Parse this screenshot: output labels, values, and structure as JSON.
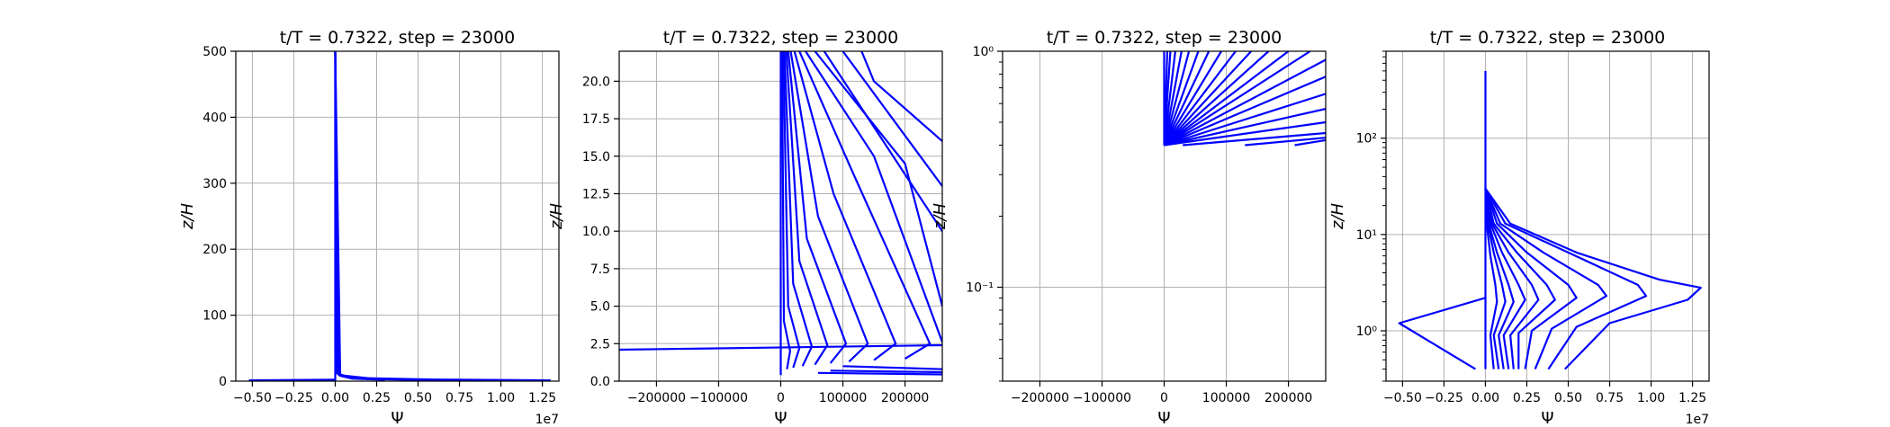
{
  "chart_data": [
    {
      "type": "line",
      "title": "t/T = 0.7322, step = 23000",
      "xlabel": "Ψ",
      "ylabel": "z/H",
      "x_scale_label": "1e7",
      "x_scale": "linear",
      "y_scale": "linear",
      "xlim": [
        -0.6,
        1.35
      ],
      "ylim": [
        0,
        500
      ],
      "x_ticks": [
        -0.5,
        -0.25,
        0.0,
        0.25,
        0.5,
        0.75,
        1.0,
        1.25
      ],
      "x_tick_labels": [
        "−0.50",
        "−0.25",
        "0.00",
        "0.25",
        "0.50",
        "0.75",
        "1.00",
        "1.25"
      ],
      "y_ticks": [
        0,
        100,
        200,
        300,
        400,
        500
      ],
      "y_tick_labels": [
        "0",
        "100",
        "200",
        "300",
        "400",
        "500"
      ],
      "grid": true,
      "color": "#0000ff",
      "series": [
        {
          "x": [
            0,
            0
          ],
          "y": [
            0.4,
            500
          ]
        },
        {
          "x": [
            0.02,
            0.005,
            0.001,
            0
          ],
          "y": [
            12,
            18,
            30,
            500
          ]
        },
        {
          "x": [
            0.3,
            0.1,
            0.03,
            0.005,
            0
          ],
          "y": [
            2,
            4,
            8,
            14,
            500
          ]
        },
        {
          "x": [
            0.6,
            0.25,
            0.08,
            0.01,
            0
          ],
          "y": [
            1.5,
            3,
            6,
            12,
            500
          ]
        },
        {
          "x": [
            0.9,
            0.4,
            0.12,
            0.02,
            0
          ],
          "y": [
            1.3,
            2.6,
            5,
            10,
            500
          ]
        },
        {
          "x": [
            1.3,
            0.6,
            0.2,
            0.03,
            0
          ],
          "y": [
            1.2,
            2.5,
            4.5,
            9,
            500
          ]
        },
        {
          "x": [
            -0.52,
            0.0
          ],
          "y": [
            1.2,
            2.2
          ]
        },
        {
          "x": [
            -0.52,
            -0.06
          ],
          "y": [
            1.2,
            0.4
          ]
        }
      ]
    },
    {
      "type": "line",
      "title": "t/T = 0.7322, step = 23000",
      "xlabel": "Ψ",
      "ylabel": "z/H",
      "x_scale": "linear",
      "y_scale": "linear",
      "xlim": [
        -260000,
        260000
      ],
      "ylim": [
        0,
        22
      ],
      "x_ticks": [
        -200000,
        -100000,
        0,
        100000,
        200000
      ],
      "x_tick_labels": [
        "−200000",
        "−100000",
        "0",
        "100000",
        "200000"
      ],
      "y_ticks": [
        0,
        2.5,
        5,
        7.5,
        10,
        12.5,
        15,
        17.5,
        20
      ],
      "y_tick_labels": [
        "0.0",
        "2.5",
        "5.0",
        "7.5",
        "10.0",
        "12.5",
        "15.0",
        "17.5",
        "20.0"
      ],
      "grid": true,
      "color": "#0000ff",
      "series": [
        {
          "x": [
            0,
            0
          ],
          "y": [
            0.4,
            22
          ]
        },
        {
          "x": [
            -260000,
            260000
          ],
          "y": [
            2.1,
            2.4
          ]
        },
        {
          "x": [
            100000,
            260000
          ],
          "y": [
            1.0,
            0.8
          ]
        },
        {
          "x": [
            80000,
            260000
          ],
          "y": [
            0.7,
            0.6
          ]
        },
        {
          "x": [
            60000,
            260000
          ],
          "y": [
            0.55,
            0.45
          ]
        },
        {
          "x": [
            10000,
            15000,
            5000,
            2000
          ],
          "y": [
            0.8,
            2.0,
            4.0,
            22
          ]
        },
        {
          "x": [
            20000,
            30000,
            12000,
            4000
          ],
          "y": [
            0.9,
            2.2,
            5.0,
            22
          ]
        },
        {
          "x": [
            35000,
            50000,
            20000,
            6000
          ],
          "y": [
            1.0,
            2.3,
            6.5,
            22
          ]
        },
        {
          "x": [
            55000,
            75000,
            30000,
            9000
          ],
          "y": [
            1.1,
            2.4,
            8.0,
            22
          ]
        },
        {
          "x": [
            80000,
            105000,
            42000,
            12000
          ],
          "y": [
            1.2,
            2.5,
            9.5,
            22
          ]
        },
        {
          "x": [
            110000,
            140000,
            60000,
            16000
          ],
          "y": [
            1.3,
            2.5,
            11.0,
            22
          ]
        },
        {
          "x": [
            150000,
            185000,
            85000,
            22000
          ],
          "y": [
            1.4,
            2.5,
            12.5,
            22
          ]
        },
        {
          "x": [
            200000,
            240000,
            115000,
            30000
          ],
          "y": [
            1.5,
            2.5,
            14.0,
            22
          ]
        },
        {
          "x": [
            260000,
            150000,
            40000
          ],
          "y": [
            2.6,
            15.0,
            22
          ]
        },
        {
          "x": [
            260000,
            200000,
            55000
          ],
          "y": [
            5.0,
            14.5,
            22
          ]
        },
        {
          "x": [
            260000,
            70000
          ],
          "y": [
            10.0,
            22
          ]
        },
        {
          "x": [
            260000,
            100000
          ],
          "y": [
            13.0,
            22
          ]
        },
        {
          "x": [
            260000,
            150000,
            130000
          ],
          "y": [
            16.0,
            20.0,
            22
          ]
        }
      ]
    },
    {
      "type": "line",
      "title": "t/T = 0.7322, step = 23000",
      "xlabel": "Ψ",
      "ylabel": "z/H",
      "x_scale": "linear",
      "y_scale": "log",
      "xlim": [
        -260000,
        260000
      ],
      "ylim": [
        0.04,
        1
      ],
      "x_ticks": [
        -200000,
        -100000,
        0,
        100000,
        200000
      ],
      "x_tick_labels": [
        "−200000",
        "−100000",
        "0",
        "100000",
        "200000"
      ],
      "y_ticks": [
        0.1,
        1
      ],
      "y_tick_labels": [
        "10⁻¹",
        "10⁰"
      ],
      "grid": true,
      "color": "#0000ff",
      "series": [
        {
          "x": [
            0,
            0
          ],
          "y": [
            0.4,
            1
          ]
        },
        {
          "x": [
            0,
            5000
          ],
          "y": [
            0.4,
            1
          ]
        },
        {
          "x": [
            0,
            10000
          ],
          "y": [
            0.4,
            1
          ]
        },
        {
          "x": [
            0,
            18000
          ],
          "y": [
            0.4,
            1
          ]
        },
        {
          "x": [
            0,
            28000
          ],
          "y": [
            0.4,
            1
          ]
        },
        {
          "x": [
            0,
            40000
          ],
          "y": [
            0.4,
            1
          ]
        },
        {
          "x": [
            0,
            55000
          ],
          "y": [
            0.4,
            1
          ]
        },
        {
          "x": [
            0,
            72000
          ],
          "y": [
            0.4,
            1
          ]
        },
        {
          "x": [
            0,
            92000
          ],
          "y": [
            0.4,
            1
          ]
        },
        {
          "x": [
            0,
            115000
          ],
          "y": [
            0.4,
            1
          ]
        },
        {
          "x": [
            0,
            140000
          ],
          "y": [
            0.4,
            1
          ]
        },
        {
          "x": [
            0,
            168000
          ],
          "y": [
            0.4,
            1
          ]
        },
        {
          "x": [
            0,
            200000
          ],
          "y": [
            0.4,
            1
          ]
        },
        {
          "x": [
            0,
            235000
          ],
          "y": [
            0.4,
            1
          ]
        },
        {
          "x": [
            0,
            260000
          ],
          "y": [
            0.4,
            0.92
          ]
        },
        {
          "x": [
            0,
            260000
          ],
          "y": [
            0.4,
            0.78
          ]
        },
        {
          "x": [
            0,
            260000
          ],
          "y": [
            0.4,
            0.66
          ]
        },
        {
          "x": [
            0,
            260000
          ],
          "y": [
            0.4,
            0.57
          ]
        },
        {
          "x": [
            0,
            260000
          ],
          "y": [
            0.4,
            0.5
          ]
        },
        {
          "x": [
            30000,
            260000
          ],
          "y": [
            0.4,
            0.45
          ]
        },
        {
          "x": [
            130000,
            260000
          ],
          "y": [
            0.4,
            0.43
          ]
        },
        {
          "x": [
            210000,
            260000
          ],
          "y": [
            0.4,
            0.42
          ]
        }
      ]
    },
    {
      "type": "line",
      "title": "t/T = 0.7322, step = 23000",
      "xlabel": "Ψ",
      "ylabel": "z/H",
      "x_scale_label": "1e7",
      "x_scale": "linear",
      "y_scale": "log",
      "xlim": [
        -0.6,
        1.35
      ],
      "ylim": [
        0.3,
        800
      ],
      "x_ticks": [
        -0.5,
        -0.25,
        0.0,
        0.25,
        0.5,
        0.75,
        1.0,
        1.25
      ],
      "x_tick_labels": [
        "−0.50",
        "−0.25",
        "0.00",
        "0.25",
        "0.50",
        "0.75",
        "1.00",
        "1.25"
      ],
      "y_ticks": [
        1,
        10,
        100
      ],
      "y_tick_labels": [
        "10⁰",
        "10¹",
        "10²"
      ],
      "grid": true,
      "color": "#0000ff",
      "series": [
        {
          "x": [
            0,
            0
          ],
          "y": [
            0.4,
            500
          ]
        },
        {
          "x": [
            0.05,
            0.03,
            0.07,
            0.06,
            0.03,
            0.01,
            0
          ],
          "y": [
            0.4,
            0.9,
            2.0,
            3.0,
            6.0,
            12,
            30
          ]
        },
        {
          "x": [
            0.08,
            0.05,
            0.12,
            0.1,
            0.05,
            0.015,
            0
          ],
          "y": [
            0.4,
            0.9,
            2.0,
            3.0,
            6.5,
            13,
            30
          ]
        },
        {
          "x": [
            0.11,
            0.08,
            0.17,
            0.14,
            0.07,
            0.02,
            0
          ],
          "y": [
            0.4,
            0.9,
            2.0,
            3.0,
            6.5,
            13,
            30
          ]
        },
        {
          "x": [
            0.14,
            0.11,
            0.24,
            0.2,
            0.1,
            0.03,
            0
          ],
          "y": [
            0.4,
            0.9,
            2.1,
            3.0,
            6.5,
            13,
            30
          ]
        },
        {
          "x": [
            0.17,
            0.15,
            0.32,
            0.28,
            0.14,
            0.04,
            0
          ],
          "y": [
            0.4,
            0.9,
            2.1,
            3.0,
            6.5,
            13,
            30
          ]
        },
        {
          "x": [
            0.2,
            0.2,
            0.42,
            0.37,
            0.19,
            0.05,
            0
          ],
          "y": [
            0.4,
            0.95,
            2.1,
            3.0,
            6.5,
            13,
            30
          ]
        },
        {
          "x": [
            0.24,
            0.28,
            0.55,
            0.5,
            0.25,
            0.07,
            0
          ],
          "y": [
            0.4,
            1.0,
            2.2,
            3.0,
            6.5,
            13,
            30
          ]
        },
        {
          "x": [
            0.3,
            0.4,
            0.73,
            0.68,
            0.35,
            0.09,
            0
          ],
          "y": [
            0.4,
            1.05,
            2.3,
            3.0,
            6.5,
            13,
            30
          ]
        },
        {
          "x": [
            0.38,
            0.55,
            0.97,
            0.92,
            0.5,
            0.12,
            0
          ],
          "y": [
            0.4,
            1.1,
            2.3,
            3.0,
            6.5,
            13,
            30
          ]
        },
        {
          "x": [
            0.48,
            0.75,
            1.22,
            1.3,
            1.05,
            0.55,
            0.15,
            0
          ],
          "y": [
            0.4,
            1.2,
            2.1,
            2.8,
            3.4,
            6.5,
            13,
            30
          ]
        },
        {
          "x": [
            0.0,
            -0.52,
            -0.06
          ],
          "y": [
            2.2,
            1.2,
            0.4
          ]
        }
      ]
    }
  ]
}
